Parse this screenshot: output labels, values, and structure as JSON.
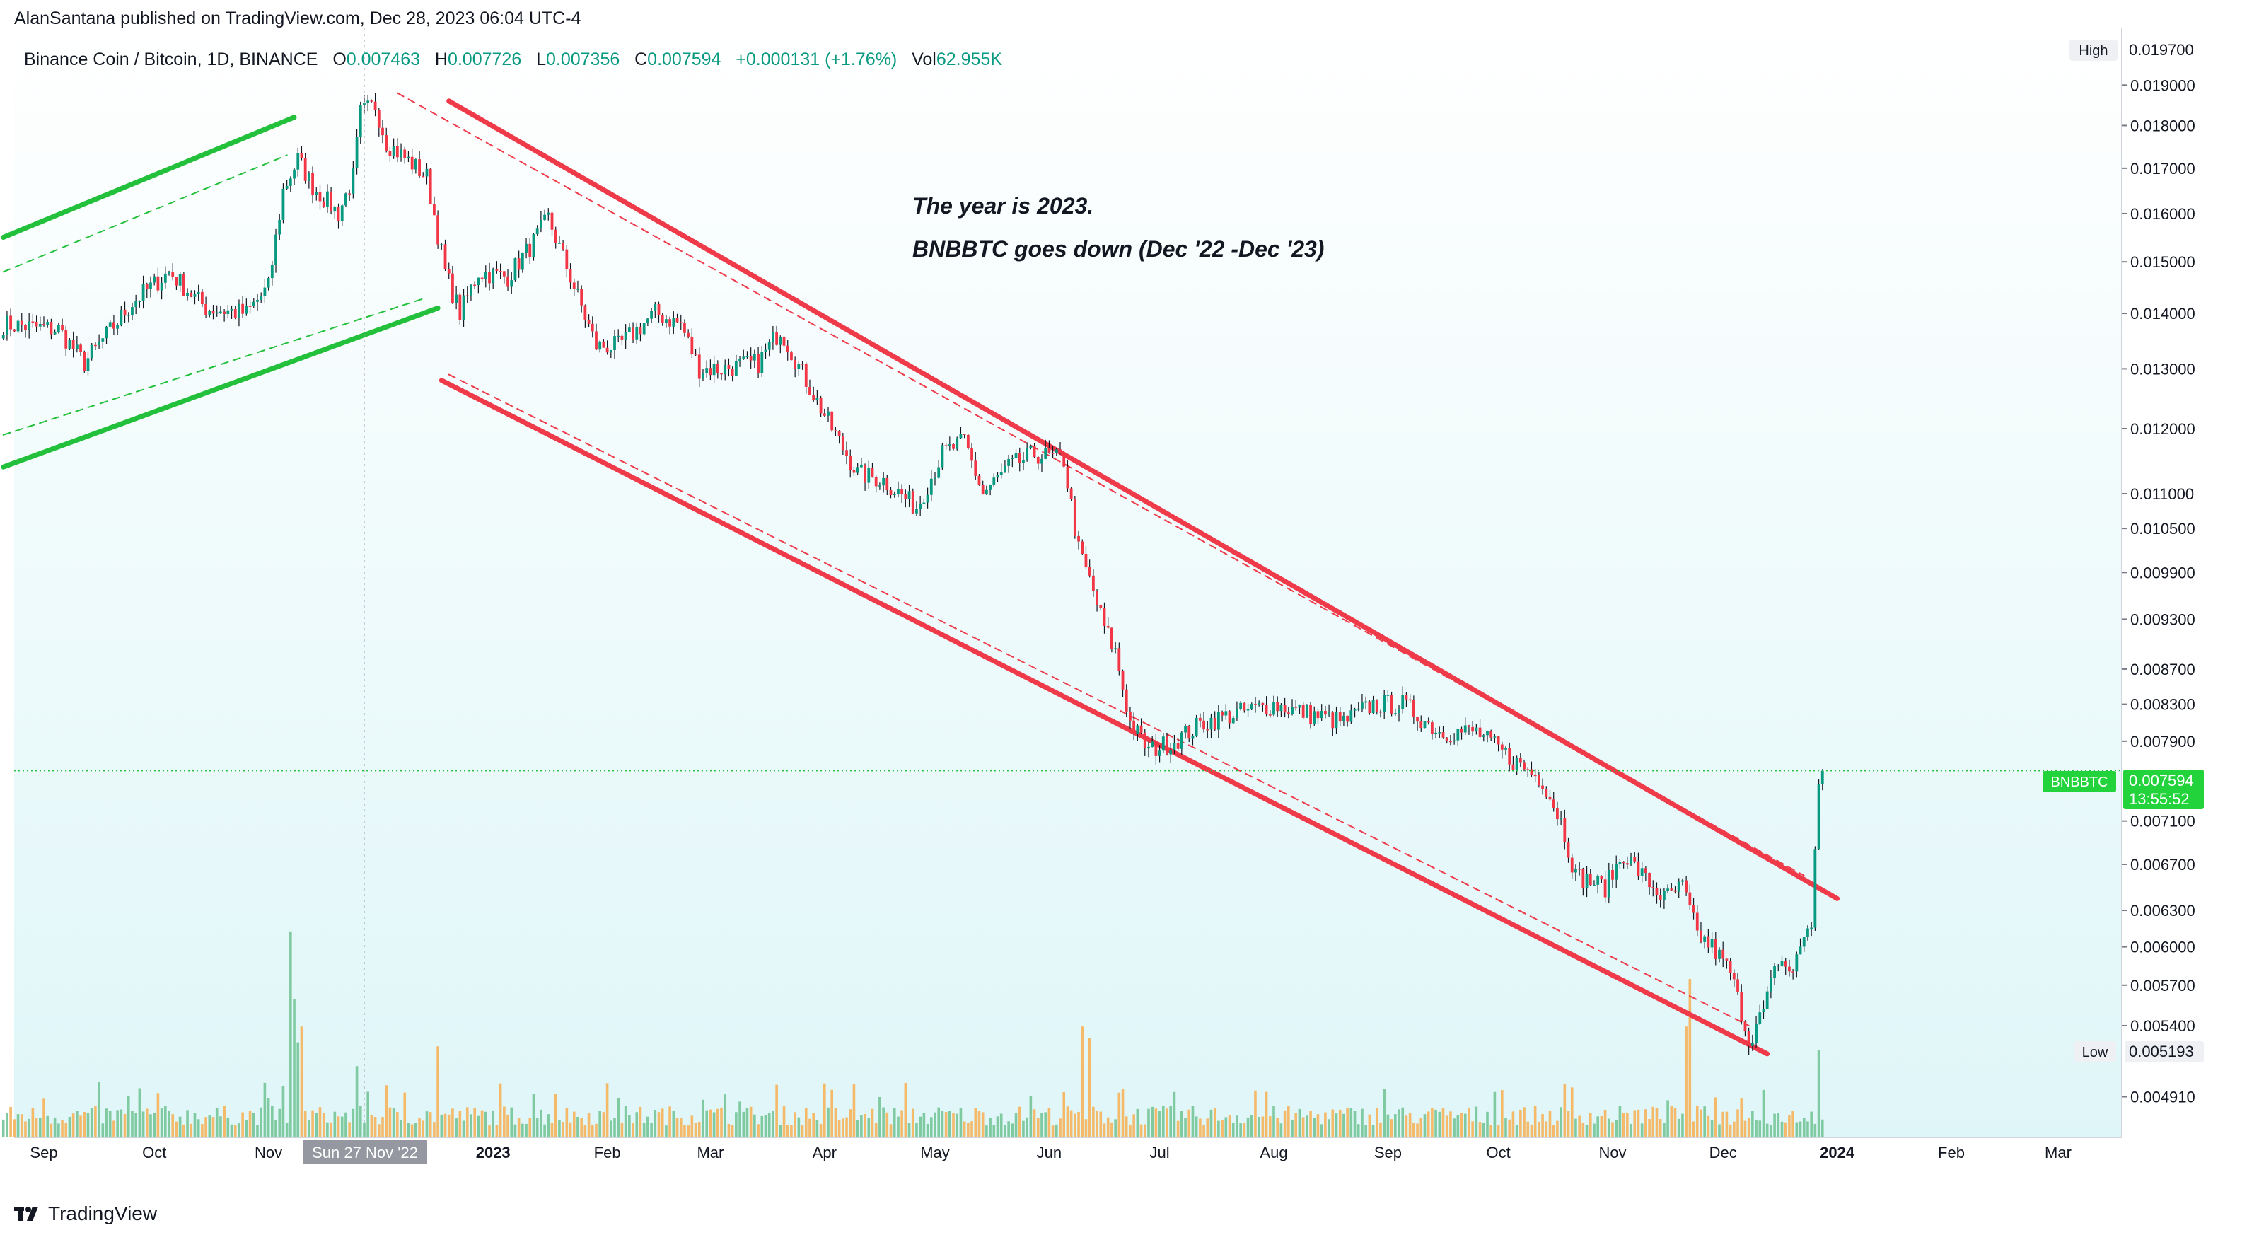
{
  "header": {
    "publish_line": "AlanSantana published on TradingView.com, Dec 28, 2023 06:04 UTC-4"
  },
  "legend": {
    "symbol": "Binance Coin / Bitcoin, 1D, BINANCE",
    "o_label": "O",
    "o": "0.007463",
    "h_label": "H",
    "h": "0.007726",
    "l_label": "L",
    "l": "0.007356",
    "c_label": "C",
    "c": "0.007594",
    "change": "+0.000131 (+1.76%)",
    "vol_label": "Vol",
    "vol": "62.955K"
  },
  "annotations": {
    "line1": "The year is 2023.",
    "line2": "BNBBTC goes down (Dec '22 -Dec '23)"
  },
  "price_badge": {
    "ticker": "BNBBTC",
    "price": "0.007594",
    "countdown": "13:55:52"
  },
  "high_label": "High",
  "high_value": "0.019700",
  "low_label": "Low",
  "low_value": "0.005193",
  "crosshair_date": "Sun 27 Nov '22",
  "brand": "TradingView",
  "colors": {
    "up": "#089981",
    "down": "#f23645",
    "volume_up": "#7fcaa0",
    "volume_down": "#f5b96a",
    "channel_green": "#22c03b",
    "channel_red": "#ef3a4a",
    "badge": "#22d33b"
  },
  "chart_data": {
    "type": "candlestick",
    "scale": "log",
    "ylim": [
      0.00465,
      0.0205
    ],
    "x_ticks": [
      "Sep",
      "Oct",
      "Nov",
      "2023",
      "Feb",
      "Mar",
      "Apr",
      "May",
      "Jun",
      "Jul",
      "Aug",
      "Sep",
      "Oct",
      "Nov",
      "Dec",
      "2024",
      "Feb",
      "Mar"
    ],
    "x_tick_dates": [
      "2022-09-01",
      "2022-10-01",
      "2022-11-01",
      "2023-01-01",
      "2023-02-01",
      "2023-03-01",
      "2023-04-01",
      "2023-05-01",
      "2023-06-01",
      "2023-07-01",
      "2023-08-01",
      "2023-09-01",
      "2023-10-01",
      "2023-11-01",
      "2023-12-01",
      "2024-01-01",
      "2024-02-01",
      "2024-03-01"
    ],
    "y_ticks": [
      "0.019000",
      "0.018000",
      "0.017000",
      "0.016000",
      "0.015000",
      "0.014000",
      "0.013000",
      "0.012000",
      "0.011000",
      "0.010500",
      "0.009900",
      "0.009300",
      "0.008700",
      "0.008300",
      "0.007900",
      "0.007100",
      "0.006700",
      "0.006300",
      "0.006000",
      "0.005700",
      "0.005400",
      "0.004910"
    ],
    "last_close": 0.007594,
    "price_path": [
      [
        "2022-08-21",
        0.0138
      ],
      [
        "2022-09-05",
        0.0137
      ],
      [
        "2022-09-12",
        0.0131
      ],
      [
        "2022-09-25",
        0.0142
      ],
      [
        "2022-10-05",
        0.0148
      ],
      [
        "2022-10-15",
        0.0141
      ],
      [
        "2022-10-26",
        0.014
      ],
      [
        "2022-11-01",
        0.0145
      ],
      [
        "2022-11-05",
        0.0165
      ],
      [
        "2022-11-09",
        0.0172
      ],
      [
        "2022-11-13",
        0.0166
      ],
      [
        "2022-11-20",
        0.016
      ],
      [
        "2022-11-24",
        0.0168
      ],
      [
        "2022-11-26",
        0.0183
      ],
      [
        "2022-11-30",
        0.0185
      ],
      [
        "2022-12-03",
        0.0176
      ],
      [
        "2022-12-10",
        0.0171
      ],
      [
        "2022-12-14",
        0.0168
      ],
      [
        "2022-12-19",
        0.0148
      ],
      [
        "2022-12-23",
        0.014
      ],
      [
        "2022-12-28",
        0.0148
      ],
      [
        "2023-01-05",
        0.0147
      ],
      [
        "2023-01-12",
        0.0154
      ],
      [
        "2023-01-16",
        0.0159
      ],
      [
        "2023-01-22",
        0.0147
      ],
      [
        "2023-01-29",
        0.0134
      ],
      [
        "2023-02-04",
        0.0134
      ],
      [
        "2023-02-14",
        0.014
      ],
      [
        "2023-02-21",
        0.0138
      ],
      [
        "2023-02-26",
        0.013
      ],
      [
        "2023-03-04",
        0.013
      ],
      [
        "2023-03-14",
        0.0131
      ],
      [
        "2023-03-20",
        0.0137
      ],
      [
        "2023-03-27",
        0.0128
      ],
      [
        "2023-04-03",
        0.012
      ],
      [
        "2023-04-10",
        0.0113
      ],
      [
        "2023-04-17",
        0.0112
      ],
      [
        "2023-04-26",
        0.0108
      ],
      [
        "2023-05-03",
        0.0116
      ],
      [
        "2023-05-09",
        0.0118
      ],
      [
        "2023-05-14",
        0.011
      ],
      [
        "2023-05-21",
        0.0114
      ],
      [
        "2023-05-28",
        0.0116
      ],
      [
        "2023-06-05",
        0.0115
      ],
      [
        "2023-06-09",
        0.0102
      ],
      [
        "2023-06-12",
        0.0098
      ],
      [
        "2023-06-16",
        0.0092
      ],
      [
        "2023-06-19",
        0.0089
      ],
      [
        "2023-06-23",
        0.0081
      ],
      [
        "2023-06-28",
        0.0078
      ],
      [
        "2023-07-05",
        0.0079
      ],
      [
        "2023-07-13",
        0.0081
      ],
      [
        "2023-07-22",
        0.0082
      ],
      [
        "2023-08-01",
        0.0083
      ],
      [
        "2023-08-10",
        0.0082
      ],
      [
        "2023-08-20",
        0.0081
      ],
      [
        "2023-08-28",
        0.0083
      ],
      [
        "2023-09-05",
        0.0083
      ],
      [
        "2023-09-15",
        0.008
      ],
      [
        "2023-09-25",
        0.008
      ],
      [
        "2023-10-05",
        0.0077
      ],
      [
        "2023-10-13",
        0.0075
      ],
      [
        "2023-10-18",
        0.0071
      ],
      [
        "2023-10-22",
        0.0066
      ],
      [
        "2023-10-30",
        0.0065
      ],
      [
        "2023-11-04",
        0.0068
      ],
      [
        "2023-11-09",
        0.0066
      ],
      [
        "2023-11-15",
        0.0064
      ],
      [
        "2023-11-20",
        0.0065
      ],
      [
        "2023-11-24",
        0.0061
      ],
      [
        "2023-11-28",
        0.006
      ],
      [
        "2023-12-03",
        0.0058
      ],
      [
        "2023-12-06",
        0.0055
      ],
      [
        "2023-12-08",
        0.0053
      ],
      [
        "2023-12-12",
        0.0055
      ],
      [
        "2023-12-16",
        0.0059
      ],
      [
        "2023-12-20",
        0.0058
      ],
      [
        "2023-12-23",
        0.0061
      ],
      [
        "2023-12-25",
        0.0062
      ],
      [
        "2023-12-26",
        0.0068
      ],
      [
        "2023-12-27",
        0.0074
      ],
      [
        "2023-12-28",
        0.007594
      ]
    ],
    "trend_lines": [
      {
        "color": "green",
        "style": "solid",
        "from": [
          "2022-08-21",
          0.0155
        ],
        "to": [
          "2022-11-08",
          0.0182
        ]
      },
      {
        "color": "green",
        "style": "solid",
        "from": [
          "2022-08-21",
          0.0114
        ],
        "to": [
          "2022-12-17",
          0.0141
        ]
      },
      {
        "color": "green",
        "style": "dashed",
        "from": [
          "2022-08-21",
          0.0119
        ],
        "to": [
          "2022-12-14",
          0.0143
        ]
      },
      {
        "color": "green",
        "style": "dashed",
        "from": [
          "2022-08-21",
          0.0148
        ],
        "to": [
          "2022-11-06",
          0.0173
        ]
      },
      {
        "color": "red",
        "style": "solid",
        "from": [
          "2022-12-20",
          0.0186
        ],
        "to": [
          "2024-01-01",
          0.0064
        ]
      },
      {
        "color": "red",
        "style": "solid",
        "from": [
          "2022-12-18",
          0.0128
        ],
        "to": [
          "2023-12-13",
          0.0052
        ]
      },
      {
        "color": "red",
        "style": "dashed",
        "from": [
          "2022-12-06",
          0.0188
        ],
        "to": [
          "2023-12-23",
          0.0066
        ]
      },
      {
        "color": "red",
        "style": "dashed",
        "from": [
          "2022-12-20",
          0.0129
        ],
        "to": [
          "2023-12-08",
          0.0054
        ]
      }
    ],
    "volume_spikes": [
      [
        "2022-11-07",
        0.52
      ],
      [
        "2022-11-08",
        0.35
      ],
      [
        "2022-11-10",
        0.28
      ],
      [
        "2022-11-09",
        0.24
      ],
      [
        "2022-11-25",
        0.18
      ],
      [
        "2022-12-17",
        0.23
      ],
      [
        "2023-06-10",
        0.28
      ],
      [
        "2023-06-12",
        0.25
      ],
      [
        "2023-11-22",
        0.4
      ],
      [
        "2023-11-21",
        0.28
      ],
      [
        "2023-12-12",
        0.12
      ],
      [
        "2023-12-27",
        0.22
      ]
    ]
  }
}
